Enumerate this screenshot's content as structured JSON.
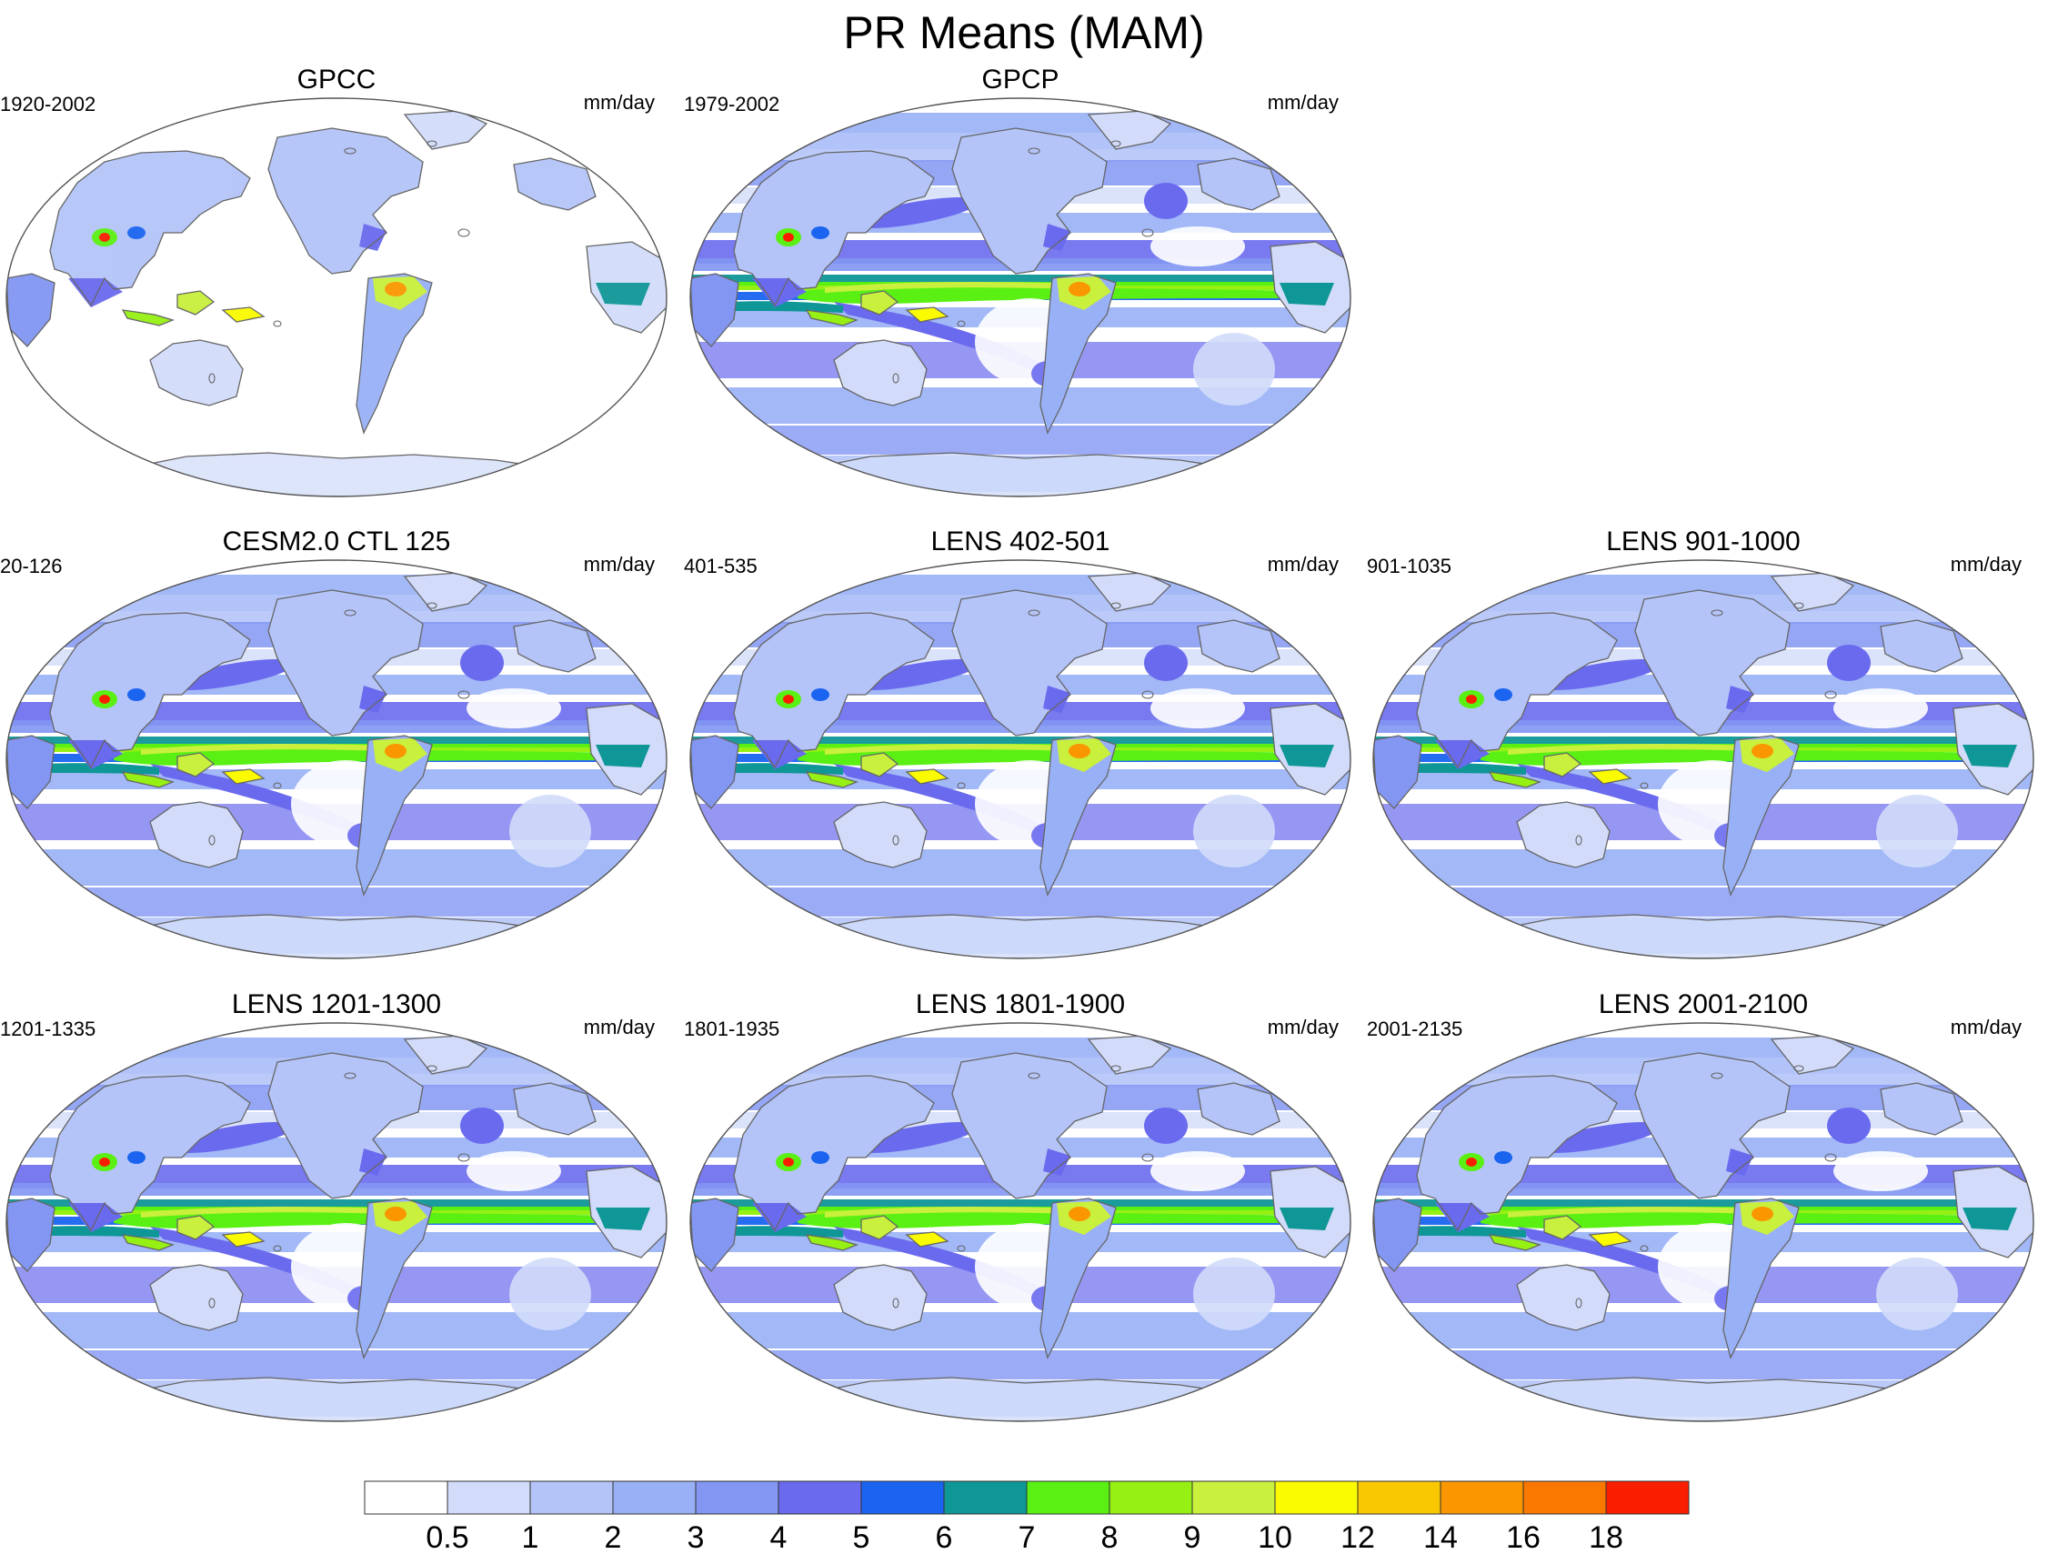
{
  "figure": {
    "title": "PR Means (MAM)"
  },
  "panels": [
    {
      "title": "GPCC",
      "period": "1920-2002",
      "units": "mm/day",
      "land_only": true
    },
    {
      "title": "GPCP",
      "period": "1979-2002",
      "units": "mm/day",
      "land_only": false
    },
    {
      "title": "CESM2.0 CTL 125",
      "period": "20-126",
      "units": "mm/day",
      "land_only": false
    },
    {
      "title": "LENS 402-501",
      "period": "401-535",
      "units": "mm/day",
      "land_only": false
    },
    {
      "title": "LENS 901-1000",
      "period": "901-1035",
      "units": "mm/day",
      "land_only": false
    },
    {
      "title": "LENS 1201-1300",
      "period": "1201-1335",
      "units": "mm/day",
      "land_only": false
    },
    {
      "title": "LENS 1801-1900",
      "period": "1801-1935",
      "units": "mm/day",
      "land_only": false
    },
    {
      "title": "LENS 2001-2100",
      "period": "2001-2135",
      "units": "mm/day",
      "land_only": false
    }
  ],
  "colorbar": {
    "levels": [
      "0.5",
      "1",
      "2",
      "3",
      "4",
      "5",
      "6",
      "7",
      "8",
      "9",
      "10",
      "12",
      "14",
      "16",
      "18"
    ],
    "colors": [
      "#ffffff",
      "#d2dcfa",
      "#b4c4f8",
      "#98b0f6",
      "#8296f2",
      "#6a6aee",
      "#1a64f0",
      "#0f9696",
      "#5af014",
      "#96f014",
      "#c8f03c",
      "#fafa00",
      "#fac800",
      "#fa9600",
      "#fa7800",
      "#fa1e00"
    ]
  }
}
